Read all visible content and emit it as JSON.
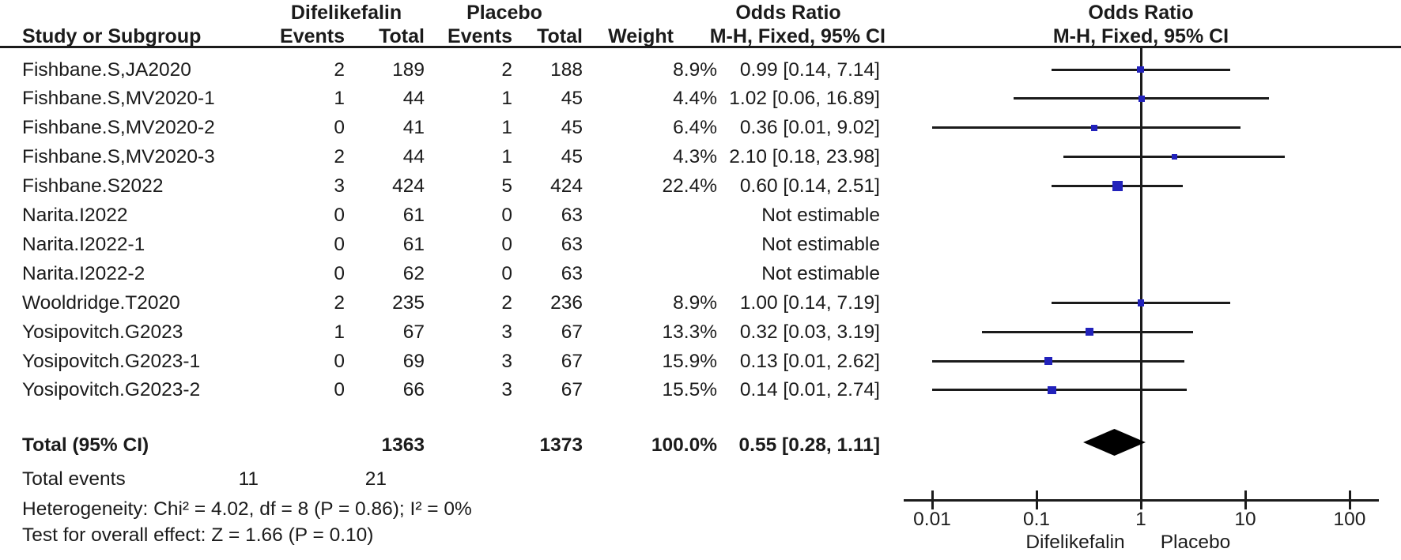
{
  "header": {
    "group_difelikefalin": "Difelikefalin",
    "group_placebo": "Placebo",
    "odds_ratio_left": "Odds Ratio",
    "odds_ratio_right": "Odds Ratio",
    "col_study": "Study or Subgroup",
    "col_events_dife": "Events",
    "col_total_dife": "Total",
    "col_events_placebo": "Events",
    "col_total_placebo": "Total",
    "col_weight": "Weight",
    "col_mh_left": "M-H, Fixed, 95% CI",
    "col_mh_right": "M-H, Fixed, 95% CI"
  },
  "table": {
    "rows": [
      {
        "study": "Fishbane.S,JA2020",
        "e1": "2",
        "t1": "189",
        "e2": "2",
        "t2": "188",
        "weight": "8.9%",
        "or_text": "0.99 [0.14, 7.14]"
      },
      {
        "study": "Fishbane.S,MV2020-1",
        "e1": "1",
        "t1": "44",
        "e2": "1",
        "t2": "45",
        "weight": "4.4%",
        "or_text": "1.02 [0.06, 16.89]"
      },
      {
        "study": "Fishbane.S,MV2020-2",
        "e1": "0",
        "t1": "41",
        "e2": "1",
        "t2": "45",
        "weight": "6.4%",
        "or_text": "0.36 [0.01, 9.02]"
      },
      {
        "study": "Fishbane.S,MV2020-3",
        "e1": "2",
        "t1": "44",
        "e2": "1",
        "t2": "45",
        "weight": "4.3%",
        "or_text": "2.10 [0.18, 23.98]"
      },
      {
        "study": "Fishbane.S2022",
        "e1": "3",
        "t1": "424",
        "e2": "5",
        "t2": "424",
        "weight": "22.4%",
        "or_text": "0.60 [0.14, 2.51]"
      },
      {
        "study": "Narita.I2022",
        "e1": "0",
        "t1": "61",
        "e2": "0",
        "t2": "63",
        "weight": "",
        "or_text": "Not estimable"
      },
      {
        "study": "Narita.I2022-1",
        "e1": "0",
        "t1": "61",
        "e2": "0",
        "t2": "63",
        "weight": "",
        "or_text": "Not estimable"
      },
      {
        "study": "Narita.I2022-2",
        "e1": "0",
        "t1": "62",
        "e2": "0",
        "t2": "63",
        "weight": "",
        "or_text": "Not estimable"
      },
      {
        "study": "Wooldridge.T2020",
        "e1": "2",
        "t1": "235",
        "e2": "2",
        "t2": "236",
        "weight": "8.9%",
        "or_text": "1.00 [0.14, 7.19]"
      },
      {
        "study": "Yosipovitch.G2023",
        "e1": "1",
        "t1": "67",
        "e2": "3",
        "t2": "67",
        "weight": "13.3%",
        "or_text": "0.32 [0.03, 3.19]"
      },
      {
        "study": "Yosipovitch.G2023-1",
        "e1": "0",
        "t1": "69",
        "e2": "3",
        "t2": "67",
        "weight": "15.9%",
        "or_text": "0.13 [0.01, 2.62]"
      },
      {
        "study": "Yosipovitch.G2023-2",
        "e1": "0",
        "t1": "66",
        "e2": "3",
        "t2": "67",
        "weight": "15.5%",
        "or_text": "0.14 [0.01, 2.74]"
      }
    ]
  },
  "totals": {
    "label": "Total (95% CI)",
    "total1": "1363",
    "total2": "1373",
    "weight": "100.0%",
    "or_text": "0.55 [0.28, 1.11]",
    "events_label": "Total events",
    "events1": "11",
    "events2": "21",
    "heterogeneity": "Heterogeneity: Chi² = 4.02, df = 8 (P = 0.86); I² = 0%",
    "overall_effect": "Test for overall effect: Z = 1.66 (P = 0.10)"
  },
  "chart_data": {
    "type": "forest",
    "scale": "log10",
    "axis_ticks": [
      0.01,
      0.1,
      1,
      10,
      100
    ],
    "axis_tick_labels": [
      "0.01",
      "0.1",
      "1",
      "10",
      "100"
    ],
    "xlabel_left": "Difelikefalin",
    "xlabel_right": "Placebo",
    "null_line": 1,
    "marker_color": "#2222bb",
    "line_color": "#1b1b1b",
    "studies": [
      {
        "name": "Fishbane.S,JA2020",
        "estimable": true,
        "or": 0.99,
        "lo": 0.14,
        "hi": 7.14,
        "weight_pct": 8.9
      },
      {
        "name": "Fishbane.S,MV2020-1",
        "estimable": true,
        "or": 1.02,
        "lo": 0.06,
        "hi": 16.89,
        "weight_pct": 4.4
      },
      {
        "name": "Fishbane.S,MV2020-2",
        "estimable": true,
        "or": 0.36,
        "lo": 0.01,
        "hi": 9.02,
        "weight_pct": 6.4
      },
      {
        "name": "Fishbane.S,MV2020-3",
        "estimable": true,
        "or": 2.1,
        "lo": 0.18,
        "hi": 23.98,
        "weight_pct": 4.3
      },
      {
        "name": "Fishbane.S2022",
        "estimable": true,
        "or": 0.6,
        "lo": 0.14,
        "hi": 2.51,
        "weight_pct": 22.4
      },
      {
        "name": "Narita.I2022",
        "estimable": false,
        "or": null,
        "lo": null,
        "hi": null,
        "weight_pct": null
      },
      {
        "name": "Narita.I2022-1",
        "estimable": false,
        "or": null,
        "lo": null,
        "hi": null,
        "weight_pct": null
      },
      {
        "name": "Narita.I2022-2",
        "estimable": false,
        "or": null,
        "lo": null,
        "hi": null,
        "weight_pct": null
      },
      {
        "name": "Wooldridge.T2020",
        "estimable": true,
        "or": 1.0,
        "lo": 0.14,
        "hi": 7.19,
        "weight_pct": 8.9
      },
      {
        "name": "Yosipovitch.G2023",
        "estimable": true,
        "or": 0.32,
        "lo": 0.03,
        "hi": 3.19,
        "weight_pct": 13.3
      },
      {
        "name": "Yosipovitch.G2023-1",
        "estimable": true,
        "or": 0.13,
        "lo": 0.01,
        "hi": 2.62,
        "weight_pct": 15.9
      },
      {
        "name": "Yosipovitch.G2023-2",
        "estimable": true,
        "or": 0.14,
        "lo": 0.01,
        "hi": 2.74,
        "weight_pct": 15.5
      }
    ],
    "total": {
      "or": 0.55,
      "lo": 0.28,
      "hi": 1.11,
      "weight_pct": 100.0
    }
  }
}
